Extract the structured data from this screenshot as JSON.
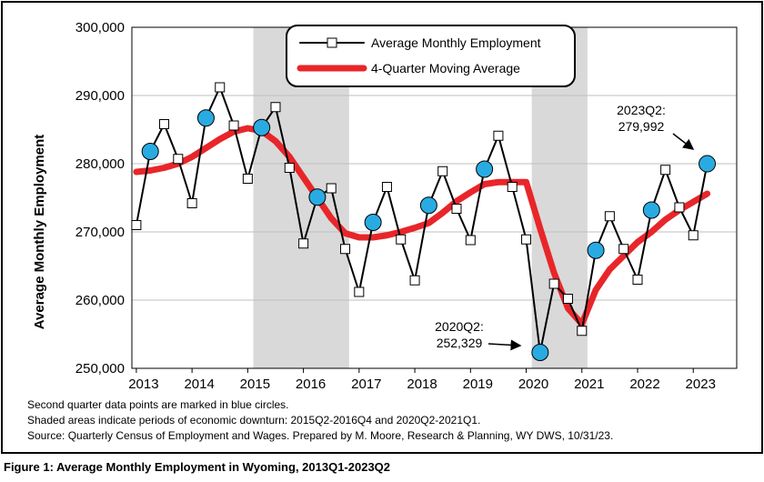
{
  "chart_data": {
    "type": "line",
    "caption": "Figure 1: Average Monthly Employment in Wyoming, 2013Q1-2023Q2",
    "y_axis_label": "Average Monthly Employment",
    "notes": [
      "Second quarter data points are marked in blue circles.",
      "Shaded areas indicate periods of economic downturn: 2015Q2-2016Q4 and 2020Q2-2021Q1.",
      "Source: Quarterly Census of Employment and Wages. Prepared by M. Moore, Research & Planning, WY DWS, 10/31/23."
    ],
    "annotations": [
      {
        "lines": [
          "2020Q2:",
          "252,329"
        ]
      },
      {
        "lines": [
          "2023Q2:",
          "279,992"
        ]
      }
    ],
    "x": [
      2013,
      2013.25,
      2013.5,
      2013.75,
      2014,
      2014.25,
      2014.5,
      2014.75,
      2015,
      2015.25,
      2015.5,
      2015.75,
      2016,
      2016.25,
      2016.5,
      2016.75,
      2017,
      2017.25,
      2017.5,
      2017.75,
      2018,
      2018.25,
      2018.5,
      2018.75,
      2019,
      2019.25,
      2019.5,
      2019.75,
      2020,
      2020.25,
      2020.5,
      2020.75,
      2021,
      2021.25,
      2021.5,
      2021.75,
      2022,
      2022.25,
      2022.5,
      2022.75,
      2023,
      2023.25
    ],
    "series": [
      {
        "name": "Average Monthly Employment",
        "color": "#000000",
        "values": [
          271000,
          281800,
          285800,
          280700,
          274200,
          286700,
          291200,
          285600,
          277800,
          285300,
          288300,
          279400,
          268300,
          275100,
          276400,
          267500,
          261200,
          271400,
          276600,
          268900,
          262900,
          273900,
          278900,
          273400,
          268800,
          279200,
          284100,
          276600,
          268900,
          252329,
          262400,
          260200,
          255500,
          267300,
          272300,
          267500,
          263000,
          273200,
          279100,
          273600,
          269500,
          279992
        ]
      },
      {
        "name": "4-Quarter Moving Average",
        "color": "#e8262a",
        "values": [
          278800,
          279000,
          279400,
          280000,
          281000,
          282300,
          283600,
          284700,
          285200,
          284800,
          283300,
          281000,
          278000,
          275000,
          272000,
          269800,
          269200,
          269200,
          269500,
          270000,
          270600,
          271300,
          272800,
          274500,
          275800,
          277000,
          277300,
          277300,
          277300,
          270500,
          264000,
          258800,
          256500,
          261500,
          264500,
          266500,
          268500,
          270000,
          271800,
          273200,
          274400,
          275600
        ]
      }
    ],
    "highlight_color": "#29abe2",
    "shade_color": "#d9d9d9",
    "shaded_periods": [
      [
        2015.1,
        2016.82
      ],
      [
        2020.1,
        2021.1
      ]
    ],
    "xlim": [
      2012.92,
      2023.78
    ],
    "xticks": [
      2013,
      2014,
      2015,
      2016,
      2017,
      2018,
      2019,
      2020,
      2021,
      2022,
      2023
    ],
    "ylim": [
      250000,
      300000
    ],
    "yticks": [
      {
        "value": 250000,
        "label": "250,000"
      },
      {
        "value": 260000,
        "label": "260,000"
      },
      {
        "value": 270000,
        "label": "270,000"
      },
      {
        "value": 280000,
        "label": "280,000"
      },
      {
        "value": 290000,
        "label": "290,000"
      },
      {
        "value": 300000,
        "label": "300,000"
      }
    ],
    "grid": true,
    "legend": "top"
  }
}
